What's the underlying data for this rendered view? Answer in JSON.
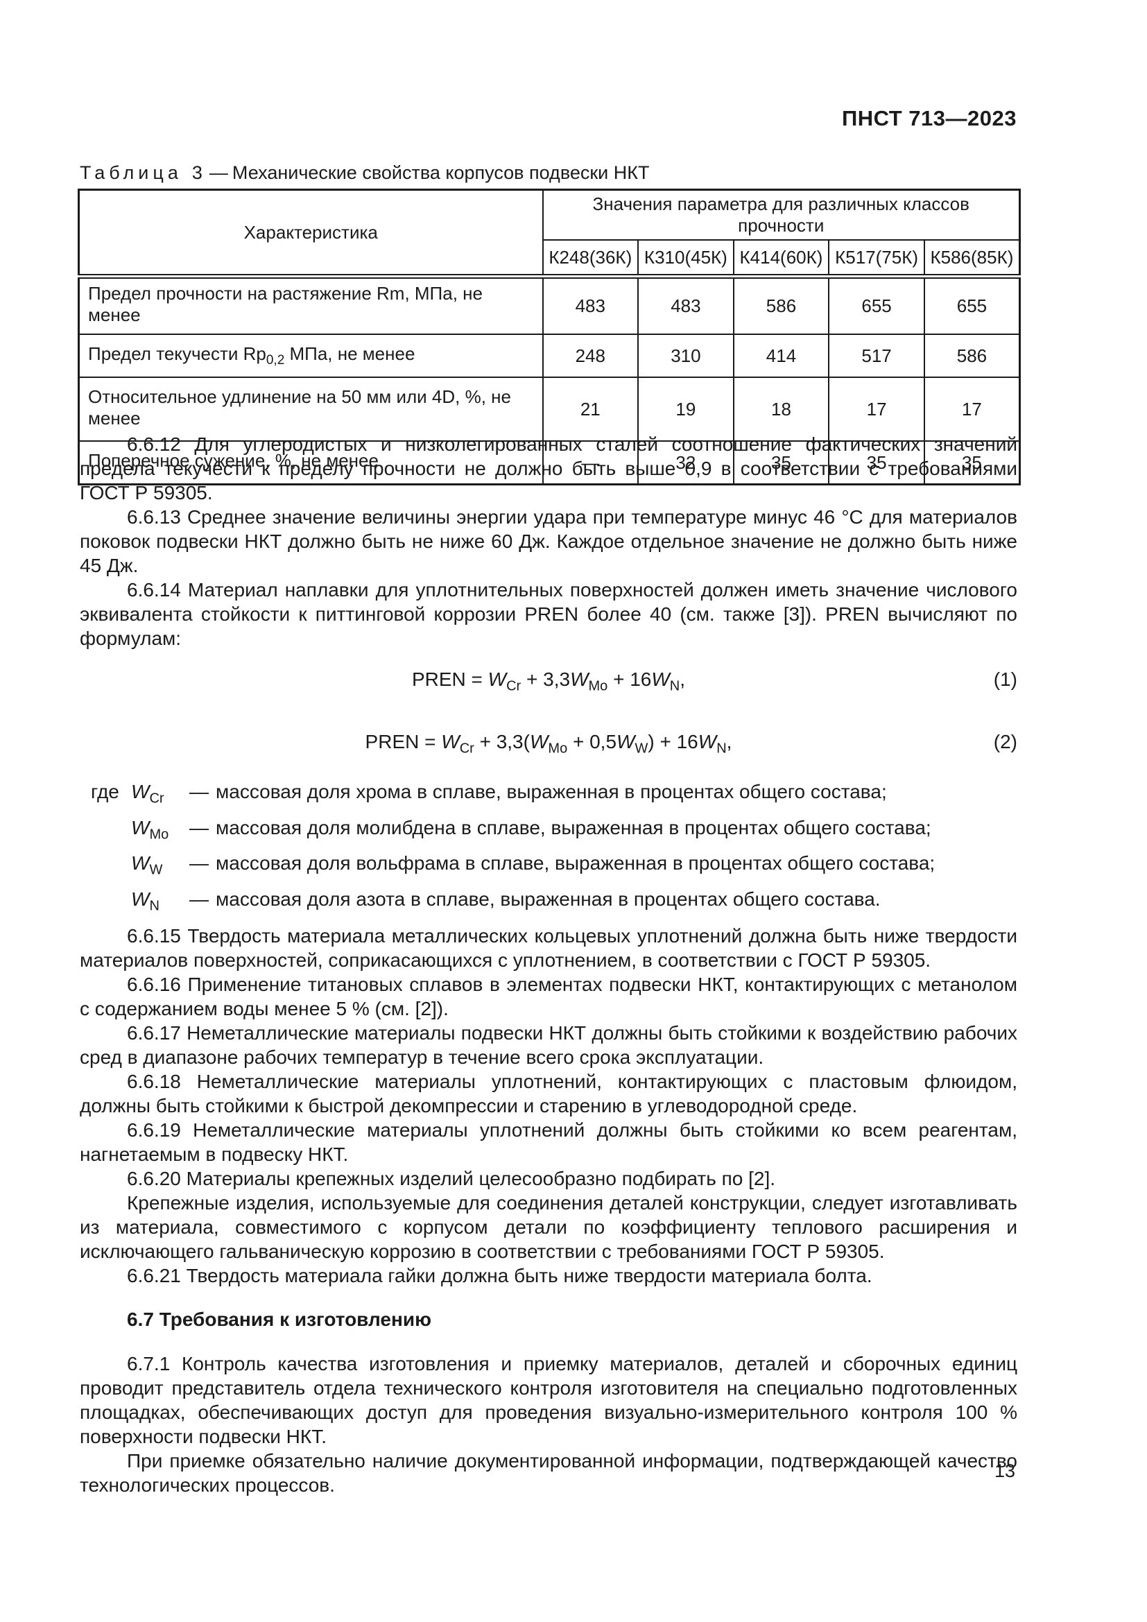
{
  "page": {
    "code": "ПНСТ 713—2023",
    "number": "13"
  },
  "table": {
    "caption_word": "Таблица",
    "caption_number": "3",
    "caption_separator": "—",
    "caption_title": "Механические свойства корпусов подвески НКТ",
    "head": {
      "characteristic": "Характеристика",
      "group": "Значения параметра для различных классов прочности",
      "classes": [
        "К248(36К)",
        "К310(45К)",
        "К414(60К)",
        "К517(75К)",
        "К586(85К)"
      ]
    },
    "rows": [
      {
        "label_pre": "Предел прочности на растяжение Rm, МПа, не менее",
        "label_sub": "",
        "label_post": "",
        "values": [
          "483",
          "483",
          "586",
          "655",
          "655"
        ]
      },
      {
        "label_pre": "Предел текучести Rp",
        "label_sub": "0,2",
        "label_post": " МПа, не менее",
        "values": [
          "248",
          "310",
          "414",
          "517",
          "586"
        ]
      },
      {
        "label_pre": "Относительное удлинение на 50 мм или 4D, %, не менее",
        "label_sub": "",
        "label_post": "",
        "values": [
          "21",
          "19",
          "18",
          "17",
          "17"
        ]
      },
      {
        "label_pre": "Поперечное сужение, %, не менее",
        "label_sub": "",
        "label_post": "",
        "values": [
          "—",
          "32",
          "35",
          "35",
          "35"
        ]
      }
    ]
  },
  "body": {
    "p_6612": "6.6.12 Для углеродистых и низколегированных сталей соотношение фактических значений предела текучести к пределу прочности не должно быть выше 0,9 в соответствии с требованиями ГОСТ Р 59305.",
    "p_6613": "6.6.13 Среднее значение величины энергии удара при температуре минус 46 °С для материалов поковок подвески НКТ должно быть не ниже 60 Дж. Каждое отдельное значение не должно быть ниже 45 Дж.",
    "p_6614": "6.6.14 Материал наплавки для уплотнительных поверхностей должен иметь значение числового эквивалента стойкости к питтинговой коррозии PREN более 40 (см. также [3]). PREN вычисляют по формулам:",
    "p_6615": "6.6.15 Твердость материала металлических кольцевых уплотнений должна быть ниже твердости материалов поверхностей, соприкасающихся с уплотнением, в соответствии с ГОСТ Р 59305.",
    "p_6616": "6.6.16 Применение титановых сплавов в элементах подвески НКТ, контактирующих с метанолом с содержанием воды менее 5 % (см. [2]).",
    "p_6617": "6.6.17 Неметаллические материалы подвески НКТ должны быть стойкими к воздействию рабочих сред в диапазоне рабочих температур в течение всего срока эксплуатации.",
    "p_6618": "6.6.18 Неметаллические материалы уплотнений, контактирующих с пластовым флюидом, должны быть стойкими к быстрой декомпрессии и старению в углеводородной среде.",
    "p_6619": "6.6.19 Неметаллические материалы уплотнений должны быть стойкими ко всем реагентам, нагнетаемым в подвеску НКТ.",
    "p_6620": "6.6.20 Материалы крепежных изделий целесообразно подбирать по [2].",
    "p_6620b": "Крепежные изделия, используемые для соединения деталей конструкции, следует изготавливать из материала, совместимого с корпусом детали по коэффициенту теплового расширения и исключающего гальваническую коррозию в соответствии с требованиями ГОСТ Р 59305.",
    "p_6621": "6.6.21 Твердость материала гайки должна быть ниже твердости материала болта.",
    "heading_67": "6.7 Требования к изготовлению",
    "p_671": "6.7.1 Контроль качества изготовления и приемку материалов, деталей и сборочных единиц проводит представитель отдела технического контроля изготовителя на специально подготовленных площадках, обеспечивающих доступ для проведения визуально-измерительного контроля 100 % поверхности подвески НКТ.",
    "p_671b": "При приемке обязательно наличие документированной информации, подтверждающей качество технологических процессов."
  },
  "formulas": {
    "f1": {
      "eq": "PREN = ",
      "sym1": "W",
      "sub1": "Cr",
      "op1": " + 3,3",
      "sym2": "W",
      "sub2": "Mo",
      "op2": " + 16",
      "sym3": "W",
      "sub3": "N",
      "tail": ",",
      "num": "(1)"
    },
    "f2": {
      "eq": "PREN = ",
      "sym1": "W",
      "sub1": "Cr",
      "op1": " + 3,3(",
      "sym2": "W",
      "sub2": "Mo",
      "op2": " + 0,5",
      "sym3": "W",
      "sub3": "W",
      "op3": ") + 16",
      "sym4": "W",
      "sub4": "N",
      "tail": ",",
      "num": "(2)"
    }
  },
  "where": {
    "lead": "где",
    "items": [
      {
        "sym": "W",
        "sub": "Cr",
        "dash": "—",
        "text": "массовая доля хрома в сплаве, выраженная в процентах общего состава;"
      },
      {
        "sym": "W",
        "sub": "Mo",
        "dash": "—",
        "text": "массовая доля молибдена в сплаве, выраженная в процентах общего состава;"
      },
      {
        "sym": "W",
        "sub": "W",
        "dash": "—",
        "text": "массовая доля вольфрама в сплаве, выраженная в процентах общего состава;"
      },
      {
        "sym": "W",
        "sub": "N",
        "dash": "—",
        "text": "массовая доля азота в сплаве, выраженная в процентах общего состава."
      }
    ]
  }
}
